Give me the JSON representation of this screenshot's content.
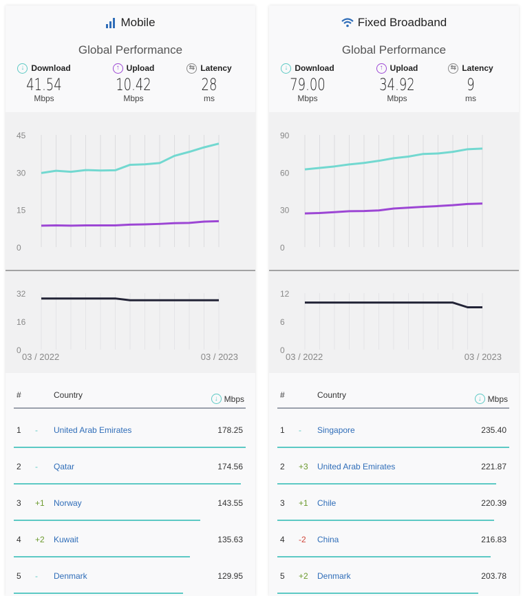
{
  "colors": {
    "download": "#72d8d0",
    "upload": "#9c46d4",
    "latency": "#232437",
    "bar": "#5cc9c4",
    "link": "#2f6db8",
    "up": "#6c9a2e",
    "down": "#d0453a"
  },
  "panels": [
    {
      "title": "Mobile",
      "icon": "signal-bars-icon",
      "subtitle": "Global Performance",
      "metrics": [
        {
          "label": "Download",
          "value": "41.54",
          "unit": "Mbps",
          "icon": "download-arrow-icon"
        },
        {
          "label": "Upload",
          "value": "10.42",
          "unit": "Mbps",
          "icon": "upload-arrow-icon"
        },
        {
          "label": "Latency",
          "value": "28",
          "unit": "ms",
          "icon": "latency-icon"
        }
      ],
      "speed_ticks": [
        "45",
        "30",
        "15",
        "0"
      ],
      "latency_ticks": [
        "32",
        "16",
        "0"
      ],
      "date_start": "03 / 2022",
      "date_end": "03 / 2023",
      "table": {
        "col_rank": "#",
        "col_country": "Country",
        "col_speed": "Mbps",
        "rows": [
          {
            "rank": "1",
            "change": "-",
            "country": "United Arab Emirates",
            "speed": "178.25",
            "fill": 1.0
          },
          {
            "rank": "2",
            "change": "-",
            "country": "Qatar",
            "speed": "174.56",
            "fill": 0.979
          },
          {
            "rank": "3",
            "change": "+1",
            "country": "Norway",
            "speed": "143.55",
            "fill": 0.805
          },
          {
            "rank": "4",
            "change": "+2",
            "country": "Kuwait",
            "speed": "135.63",
            "fill": 0.761
          },
          {
            "rank": "5",
            "change": "-",
            "country": "Denmark",
            "speed": "129.95",
            "fill": 0.729
          }
        ]
      }
    },
    {
      "title": "Fixed Broadband",
      "icon": "wifi-icon",
      "subtitle": "Global Performance",
      "metrics": [
        {
          "label": "Download",
          "value": "79.00",
          "unit": "Mbps",
          "icon": "download-arrow-icon"
        },
        {
          "label": "Upload",
          "value": "34.92",
          "unit": "Mbps",
          "icon": "upload-arrow-icon"
        },
        {
          "label": "Latency",
          "value": "9",
          "unit": "ms",
          "icon": "latency-icon"
        }
      ],
      "speed_ticks": [
        "90",
        "60",
        "30",
        "0"
      ],
      "latency_ticks": [
        "12",
        "6",
        "0"
      ],
      "date_start": "03 / 2022",
      "date_end": "03 / 2023",
      "table": {
        "col_rank": "#",
        "col_country": "Country",
        "col_speed": "Mbps",
        "rows": [
          {
            "rank": "1",
            "change": "-",
            "country": "Singapore",
            "speed": "235.40",
            "fill": 1.0
          },
          {
            "rank": "2",
            "change": "+3",
            "country": "United Arab Emirates",
            "speed": "221.87",
            "fill": 0.943
          },
          {
            "rank": "3",
            "change": "+1",
            "country": "Chile",
            "speed": "220.39",
            "fill": 0.936
          },
          {
            "rank": "4",
            "change": "-2",
            "country": "China",
            "speed": "216.83",
            "fill": 0.921
          },
          {
            "rank": "5",
            "change": "+2",
            "country": "Denmark",
            "speed": "203.78",
            "fill": 0.866
          }
        ]
      }
    }
  ],
  "chart_data": [
    {
      "type": "line",
      "x": [
        "03/2022",
        "04/2022",
        "05/2022",
        "06/2022",
        "07/2022",
        "08/2022",
        "09/2022",
        "10/2022",
        "11/2022",
        "12/2022",
        "01/2023",
        "02/2023",
        "03/2023"
      ],
      "xlabel_start": "03 / 2022",
      "xlabel_end": "03 / 2023",
      "ylim": [
        0,
        45
      ],
      "yticks": [
        0,
        15,
        30,
        45
      ],
      "series": [
        {
          "name": "Download",
          "values": [
            29.7,
            30.6,
            30.2,
            30.9,
            30.7,
            30.8,
            33.0,
            33.2,
            33.7,
            36.6,
            38.2,
            40.0,
            41.5
          ]
        },
        {
          "name": "Upload",
          "values": [
            8.6,
            8.7,
            8.6,
            8.7,
            8.7,
            8.7,
            9.0,
            9.1,
            9.3,
            9.6,
            9.7,
            10.2,
            10.4
          ]
        }
      ]
    },
    {
      "type": "line",
      "x": [
        "03/2022",
        "04/2022",
        "05/2022",
        "06/2022",
        "07/2022",
        "08/2022",
        "09/2022",
        "10/2022",
        "11/2022",
        "12/2022",
        "01/2023",
        "02/2023",
        "03/2023"
      ],
      "ylim": [
        0,
        32
      ],
      "yticks": [
        0,
        16,
        32
      ],
      "series": [
        {
          "name": "Latency",
          "values": [
            29,
            29,
            29,
            29,
            29,
            29,
            28,
            28,
            28,
            28,
            28,
            28,
            28
          ]
        }
      ]
    },
    {
      "type": "line",
      "x": [
        "03/2022",
        "04/2022",
        "05/2022",
        "06/2022",
        "07/2022",
        "08/2022",
        "09/2022",
        "10/2022",
        "11/2022",
        "12/2022",
        "01/2023",
        "02/2023",
        "03/2023"
      ],
      "xlabel_start": "03 / 2022",
      "xlabel_end": "03 / 2023",
      "ylim": [
        0,
        90
      ],
      "yticks": [
        0,
        30,
        60,
        90
      ],
      "series": [
        {
          "name": "Download",
          "values": [
            62.3,
            63.5,
            64.7,
            66.3,
            67.5,
            69.2,
            71.3,
            72.6,
            74.7,
            75.1,
            76.4,
            78.5,
            79.0
          ]
        },
        {
          "name": "Upload",
          "values": [
            27.0,
            27.3,
            28.0,
            28.8,
            28.9,
            29.4,
            30.9,
            31.6,
            32.3,
            32.9,
            33.6,
            34.6,
            34.9
          ]
        }
      ]
    },
    {
      "type": "line",
      "x": [
        "03/2022",
        "04/2022",
        "05/2022",
        "06/2022",
        "07/2022",
        "08/2022",
        "09/2022",
        "10/2022",
        "11/2022",
        "12/2022",
        "01/2023",
        "02/2023",
        "03/2023"
      ],
      "ylim": [
        0,
        12
      ],
      "yticks": [
        0,
        6,
        12
      ],
      "series": [
        {
          "name": "Latency",
          "values": [
            10,
            10,
            10,
            10,
            10,
            10,
            10,
            10,
            10,
            10,
            10,
            9,
            9
          ]
        }
      ]
    }
  ]
}
